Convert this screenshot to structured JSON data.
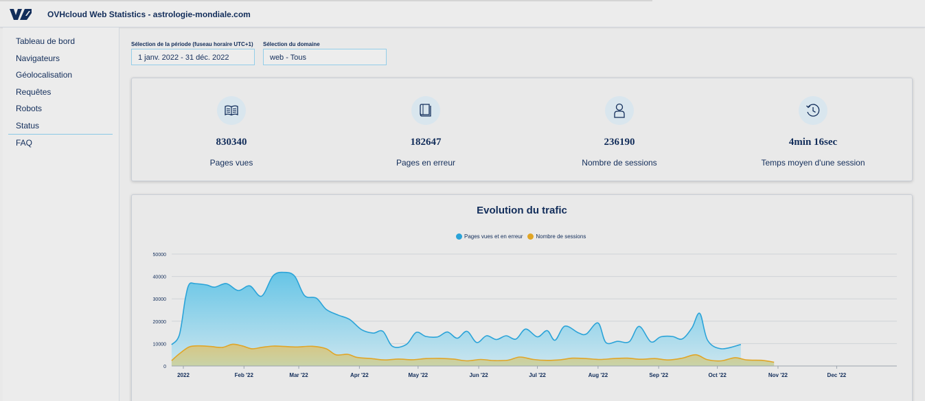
{
  "header": {
    "title": "OVHcloud Web Statistics  -  astrologie-mondiale.com"
  },
  "sidebar": {
    "items": [
      {
        "label": "Tableau de bord"
      },
      {
        "label": "Navigateurs"
      },
      {
        "label": "Géolocalisation"
      },
      {
        "label": "Requêtes"
      },
      {
        "label": "Robots"
      },
      {
        "label": "Status"
      },
      {
        "label": "FAQ"
      }
    ]
  },
  "filters": {
    "period_label": "Sélection de la période (fuseau horaire UTC+1)",
    "period_value": "1 janv. 2022 - 31 déc. 2022",
    "domain_label": "Sélection du domaine",
    "domain_value": "web - Tous"
  },
  "stats": [
    {
      "icon": "book-open-icon",
      "value": "830340",
      "label": "Pages vues"
    },
    {
      "icon": "book-closed-icon",
      "value": "182647",
      "label": "Pages en erreur"
    },
    {
      "icon": "user-icon",
      "value": "236190",
      "label": "Nombre de sessions"
    },
    {
      "icon": "clock-history-icon",
      "value": "4min 16sec",
      "label": "Temps moyen d'une session"
    }
  ],
  "colors": {
    "brand": "#122d5a",
    "series_pages": "#2aa3d8",
    "series_sessions": "#e0a526"
  },
  "chart_data": {
    "type": "area",
    "title": "Evolution du trafic",
    "xlabel": "",
    "ylabel": "",
    "ylim": [
      0,
      50000
    ],
    "y_ticks": [
      0,
      10000,
      20000,
      30000,
      40000,
      50000
    ],
    "x_ticks": [
      "2022",
      "Feb '22",
      "Mar '22",
      "Apr '22",
      "May '22",
      "Jun '22",
      "Jul '22",
      "Aug '22",
      "Sep '22",
      "Oct '22",
      "Nov '22",
      "Dec '22"
    ],
    "x_tick_days": [
      0,
      31,
      59,
      90,
      120,
      151,
      181,
      212,
      243,
      273,
      304,
      334
    ],
    "legend": "top-center",
    "grid": true,
    "series": [
      {
        "name": "Pages vues et en erreur",
        "color": "#2aa3d8",
        "points": [
          [
            -6,
            9500
          ],
          [
            -2,
            14000
          ],
          [
            1,
            30000
          ],
          [
            3,
            36500
          ],
          [
            6,
            36800
          ],
          [
            12,
            36200
          ],
          [
            16,
            35200
          ],
          [
            22,
            36800
          ],
          [
            28,
            33700
          ],
          [
            34,
            35800
          ],
          [
            40,
            31200
          ],
          [
            46,
            40400
          ],
          [
            52,
            41800
          ],
          [
            57,
            40000
          ],
          [
            62,
            31400
          ],
          [
            68,
            30300
          ],
          [
            73,
            25300
          ],
          [
            79,
            22800
          ],
          [
            85,
            20800
          ],
          [
            91,
            16300
          ],
          [
            97,
            14700
          ],
          [
            102,
            15500
          ],
          [
            107,
            8700
          ],
          [
            114,
            9600
          ],
          [
            119,
            15000
          ],
          [
            124,
            13200
          ],
          [
            130,
            13000
          ],
          [
            135,
            15200
          ],
          [
            140,
            12400
          ],
          [
            145,
            15500
          ],
          [
            150,
            10500
          ],
          [
            155,
            13500
          ],
          [
            160,
            11800
          ],
          [
            165,
            13500
          ],
          [
            170,
            12000
          ],
          [
            175,
            16500
          ],
          [
            181,
            13000
          ],
          [
            186,
            15800
          ],
          [
            190,
            11500
          ],
          [
            195,
            17800
          ],
          [
            202,
            14800
          ],
          [
            206,
            14300
          ],
          [
            212,
            19200
          ],
          [
            216,
            10500
          ],
          [
            222,
            11000
          ],
          [
            228,
            10900
          ],
          [
            233,
            17700
          ],
          [
            239,
            10800
          ],
          [
            244,
            13000
          ],
          [
            250,
            13200
          ],
          [
            255,
            12100
          ],
          [
            260,
            17000
          ],
          [
            264,
            23500
          ],
          [
            268,
            11500
          ],
          [
            275,
            7700
          ],
          [
            285,
            9600
          ]
        ]
      },
      {
        "name": "Nombre de sessions",
        "color": "#e0a526",
        "points": [
          [
            -6,
            2400
          ],
          [
            -2,
            5500
          ],
          [
            3,
            8500
          ],
          [
            8,
            9000
          ],
          [
            14,
            8700
          ],
          [
            20,
            8300
          ],
          [
            25,
            9700
          ],
          [
            30,
            9000
          ],
          [
            35,
            7700
          ],
          [
            40,
            8300
          ],
          [
            46,
            8900
          ],
          [
            52,
            8700
          ],
          [
            58,
            8500
          ],
          [
            66,
            8800
          ],
          [
            73,
            7700
          ],
          [
            78,
            5000
          ],
          [
            84,
            5200
          ],
          [
            89,
            3800
          ],
          [
            96,
            3300
          ],
          [
            103,
            2700
          ],
          [
            110,
            3100
          ],
          [
            117,
            2800
          ],
          [
            124,
            3300
          ],
          [
            131,
            3400
          ],
          [
            138,
            3100
          ],
          [
            145,
            2300
          ],
          [
            152,
            2900
          ],
          [
            159,
            2400
          ],
          [
            166,
            2600
          ],
          [
            172,
            4000
          ],
          [
            179,
            2900
          ],
          [
            186,
            2500
          ],
          [
            193,
            2800
          ],
          [
            199,
            3500
          ],
          [
            206,
            3300
          ],
          [
            213,
            2900
          ],
          [
            220,
            3300
          ],
          [
            227,
            3500
          ],
          [
            234,
            3000
          ],
          [
            241,
            3300
          ],
          [
            248,
            2700
          ],
          [
            255,
            3500
          ],
          [
            262,
            5000
          ],
          [
            268,
            2800
          ],
          [
            275,
            2300
          ],
          [
            282,
            3700
          ],
          [
            288,
            2700
          ],
          [
            296,
            2500
          ],
          [
            302,
            1700
          ]
        ]
      }
    ]
  }
}
